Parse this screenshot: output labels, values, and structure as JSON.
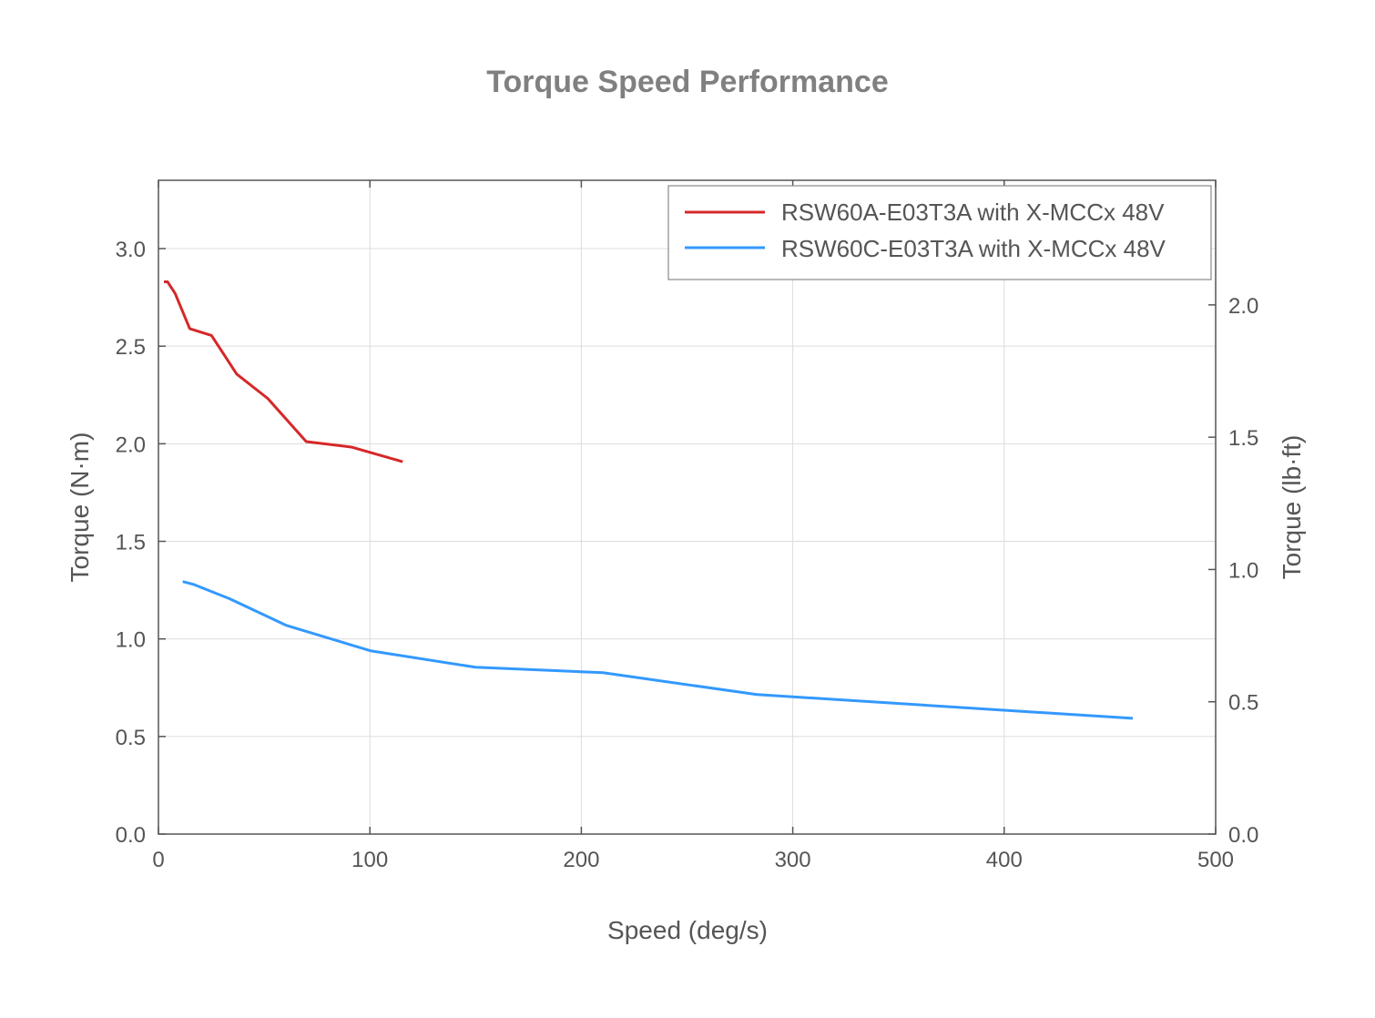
{
  "chart_data": {
    "type": "line",
    "title": "Torque Speed Performance",
    "xlabel": "Speed (deg/s)",
    "ylabel": "Torque (N·m)",
    "ylabel_right": "Torque (lb·ft)",
    "xlim": [
      0,
      500
    ],
    "ylim": [
      0,
      3.35
    ],
    "ylim_right_note_factor": 0.7376,
    "x_ticks": [
      "0",
      "100",
      "200",
      "300",
      "400",
      "500"
    ],
    "y_ticks": [
      "0.0",
      "0.5",
      "1.0",
      "1.5",
      "2.0",
      "2.5",
      "3.0"
    ],
    "y_ticks_right": [
      "0.0",
      "0.5",
      "1.0",
      "1.5",
      "2.0"
    ],
    "grid": true,
    "legend_position": "top-right",
    "series": [
      {
        "name": "RSW60A-E03T3A with X-MCCx 48V",
        "color": "#d62728",
        "x": [
          2.6,
          4.3,
          7.9,
          14.8,
          25.1,
          37.0,
          51.7,
          69.9,
          91.2,
          115.5
        ],
        "y": [
          2.83,
          2.83,
          2.77,
          2.59,
          2.555,
          2.357,
          2.232,
          2.011,
          1.983,
          1.908
        ]
      },
      {
        "name": "RSW60C-E03T3A with X-MCCx 48V",
        "color": "#3399ff",
        "x": [
          11.5,
          16.4,
          33.6,
          60.3,
          100.3,
          149.9,
          210.2,
          283.0,
          460.8
        ],
        "y": [
          1.294,
          1.28,
          1.206,
          1.07,
          0.939,
          0.855,
          0.827,
          0.715,
          0.593
        ]
      }
    ]
  }
}
